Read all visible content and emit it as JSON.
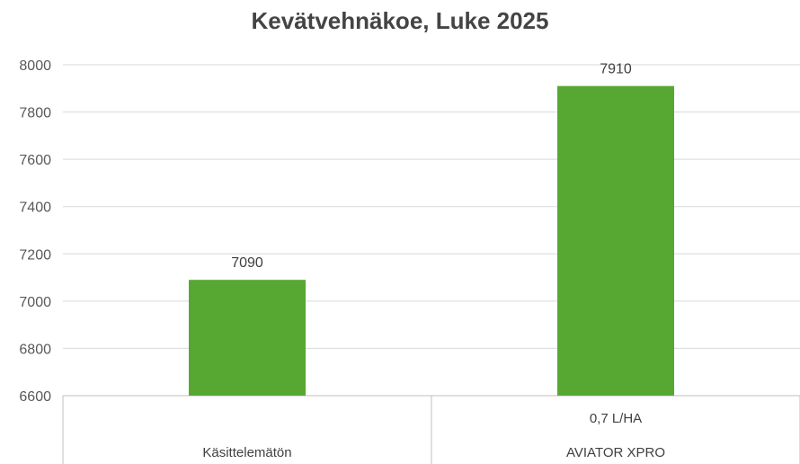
{
  "chart_data": {
    "type": "bar",
    "title": "Kevätvehnäkoe, Luke 2025",
    "xlabel": "",
    "ylabel": "",
    "categories": [
      {
        "lines": [
          "",
          "Käsittelemätön"
        ]
      },
      {
        "lines": [
          "0,7 L/HA",
          "AVIATOR XPRO"
        ]
      }
    ],
    "values": [
      7090,
      7910
    ],
    "value_labels": [
      "7090",
      "7910"
    ],
    "ylim": [
      6600,
      8000
    ],
    "yticks": [
      6600,
      6800,
      7000,
      7200,
      7400,
      7600,
      7800,
      8000
    ],
    "ytick_labels": [
      "6600",
      "6800",
      "7000",
      "7200",
      "7400",
      "7600",
      "7800",
      "8000"
    ],
    "grid": true,
    "legend": "none",
    "bar_color": "#56a832"
  }
}
